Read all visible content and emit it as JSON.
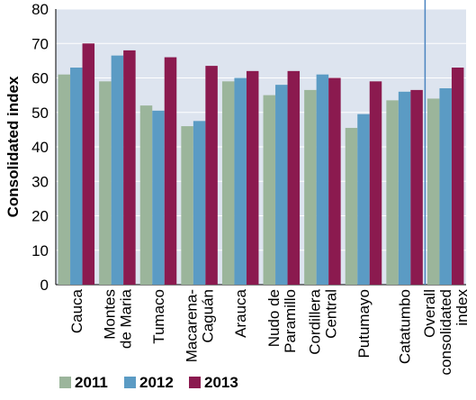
{
  "chart_data": {
    "type": "bar",
    "ylabel": "Consolidated index",
    "ylim": [
      0,
      80
    ],
    "yticks": [
      0,
      10,
      20,
      30,
      40,
      50,
      60,
      70,
      80
    ],
    "grid": true,
    "legend_position": "bottom",
    "categories": [
      [
        "Cauca"
      ],
      [
        "Montes",
        "de Maria"
      ],
      [
        "Tumaco"
      ],
      [
        "Macarena-",
        "Caguán"
      ],
      [
        "Arauca"
      ],
      [
        "Nudo de",
        "Paramillo"
      ],
      [
        "Cordillera",
        "Central"
      ],
      [
        "Putumayo"
      ],
      [
        "Catatumbo"
      ],
      [
        "Overall",
        "consolidated",
        "index"
      ]
    ],
    "series": [
      {
        "name": "2011",
        "color": "#9bb59b",
        "values": [
          61.0,
          59.0,
          52.0,
          46.0,
          59.0,
          55.0,
          56.5,
          45.5,
          53.5,
          54.0
        ]
      },
      {
        "name": "2012",
        "color": "#5b9bc4",
        "values": [
          63.0,
          66.5,
          50.5,
          47.5,
          60.0,
          58.0,
          61.0,
          49.5,
          56.0,
          57.0
        ]
      },
      {
        "name": "2013",
        "color": "#8b1a4f",
        "values": [
          70.0,
          68.0,
          66.0,
          63.5,
          62.0,
          62.0,
          60.0,
          59.0,
          56.5,
          63.0
        ]
      }
    ],
    "separator_after_index": 8,
    "colors": {
      "plot_background": "#dde4ef",
      "grid": "#ffffff",
      "separator": "#4a84c0"
    }
  }
}
